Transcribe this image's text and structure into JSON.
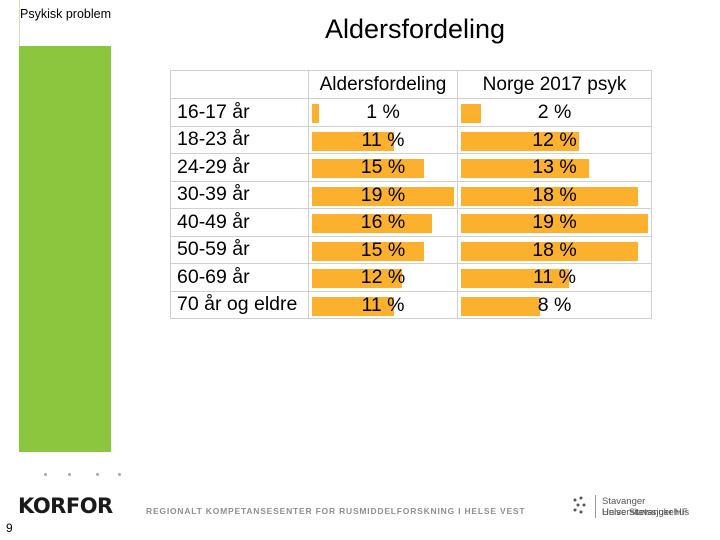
{
  "sidebar": {
    "label": "Psykisk problem"
  },
  "slide": {
    "title": "Aldersfordeling",
    "page_number": "9"
  },
  "colors": {
    "sidebar_green": "#8cc63f",
    "bar_orange": "#fbb12e"
  },
  "chart_data": {
    "type": "table",
    "columns": [
      "Aldersfordeling",
      "Norge 2017 psyk"
    ],
    "categories": [
      "16-17 år",
      "18-23 år",
      "24-29 år",
      "30-39 år",
      "40-49 år",
      "50-59 år",
      "60-69 år",
      "70 år og eldre"
    ],
    "series": [
      {
        "name": "Aldersfordeling",
        "values": [
          1,
          11,
          15,
          19,
          16,
          15,
          12,
          11
        ],
        "labels": [
          "1 %",
          "11 %",
          "15 %",
          "19 %",
          "16 %",
          "15 %",
          "12 %",
          "11 %"
        ]
      },
      {
        "name": "Norge 2017 psyk",
        "values": [
          2,
          12,
          13,
          18,
          19,
          18,
          11,
          8
        ],
        "labels": [
          "2 %",
          "12 %",
          "13 %",
          "18 %",
          "19 %",
          "18 %",
          "11 %",
          "8 %"
        ]
      }
    ],
    "bar_max": [
      19,
      19
    ]
  },
  "footer": {
    "logo_text": "KORFOR",
    "center_text": "REGIONALT KOMPETANSESENTER FOR RUSMIDDELFORSKNING I HELSE VEST",
    "right_line1": "Stavanger Universitetssjukehus",
    "right_line2": "Helse Stavanger HF",
    "right_icon": "hospital-logo-icon"
  }
}
